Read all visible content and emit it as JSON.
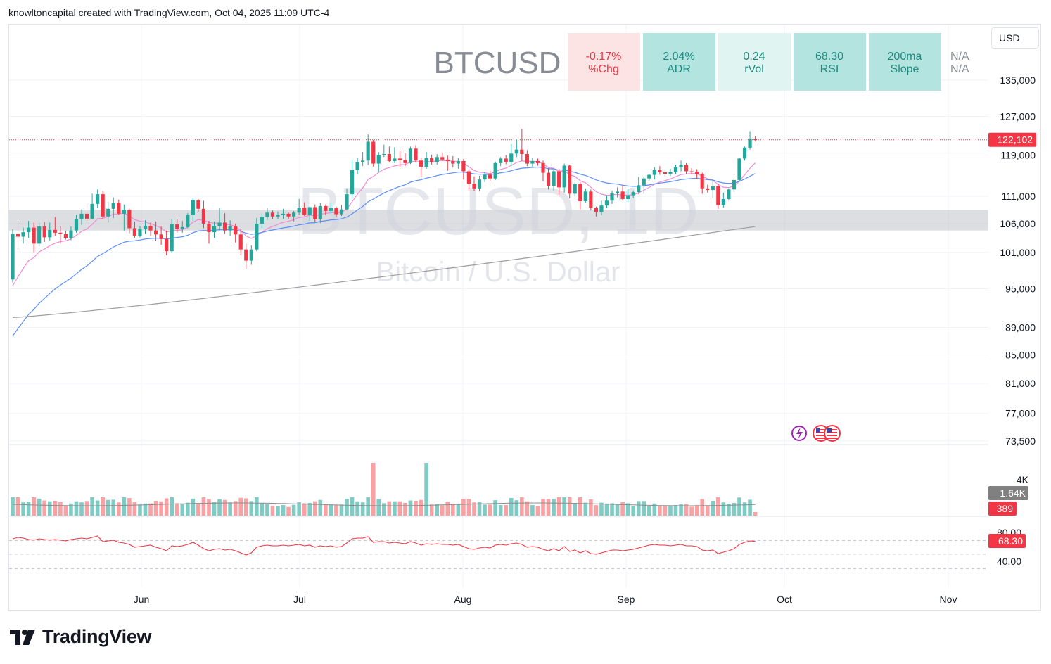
{
  "header": {
    "credit": "knowltoncapital created with TradingView.com, Oct 04, 2025 11:09 UTC-4"
  },
  "currency": "USD",
  "symbol": "BTCUSD",
  "watermark": {
    "title": "BTCUSD, 1D",
    "subtitle": "Bitcoin / U.S. Dollar"
  },
  "stats": [
    {
      "value": "-0.17%",
      "label": "%Chg",
      "tone": "neg"
    },
    {
      "value": "2.04%",
      "label": "ADR",
      "tone": "pos"
    },
    {
      "value": "0.24",
      "label": "rVol",
      "tone": "light"
    },
    {
      "value": "68.30",
      "label": "RSI",
      "tone": "pos"
    },
    {
      "value": "200ma",
      "label": "Slope",
      "tone": "pos"
    }
  ],
  "na_values": [
    "N/A",
    "N/A"
  ],
  "brand": {
    "name": "TradingView"
  },
  "colors": {
    "up": "#26a69a",
    "down": "#f23645",
    "ema_fast": "#f28bd8",
    "sma_mid": "#5b8ff9",
    "sma_slow": "#9e9e9e",
    "rsi": "#f23645"
  },
  "chart_data": {
    "type": "candlestick",
    "price_axis_ticks": [
      "135,000",
      "127,000",
      "119,000",
      "111,000",
      "106,000",
      "101,000",
      "95,000",
      "89,000",
      "85,000",
      "81,000",
      "77,000",
      "73,500"
    ],
    "x_tick_labels": [
      "Jun",
      "Jul",
      "Aug",
      "Sep",
      "Oct",
      "Nov"
    ],
    "last_price": "122,102",
    "ohlc": [
      [
        96500,
        105000,
        96000,
        104200
      ],
      [
        104200,
        106500,
        101500,
        103700
      ],
      [
        103700,
        105300,
        102500,
        104500
      ],
      [
        104500,
        106500,
        103500,
        105300
      ],
      [
        105300,
        106200,
        101000,
        102500
      ],
      [
        102500,
        106200,
        102000,
        105500
      ],
      [
        105500,
        106300,
        102800,
        103600
      ],
      [
        103600,
        106200,
        103000,
        104900
      ],
      [
        104900,
        107200,
        103800,
        104400
      ],
      [
        104400,
        105500,
        102500,
        104200
      ],
      [
        104200,
        104800,
        103200,
        103500
      ],
      [
        103500,
        105500,
        103100,
        104800
      ],
      [
        104800,
        107600,
        104400,
        106800
      ],
      [
        106800,
        108600,
        105800,
        107800
      ],
      [
        107800,
        109800,
        106500,
        106900
      ],
      [
        106900,
        111500,
        106800,
        109600
      ],
      [
        109600,
        112300,
        108800,
        111400
      ],
      [
        111400,
        112000,
        106800,
        107300
      ],
      [
        107300,
        109900,
        106200,
        108700
      ],
      [
        108700,
        110800,
        107000,
        109800
      ],
      [
        109800,
        110400,
        107600,
        107800
      ],
      [
        107800,
        109500,
        104800,
        108500
      ],
      [
        108500,
        108700,
        104300,
        105200
      ],
      [
        105200,
        106400,
        103500,
        103800
      ],
      [
        103800,
        105600,
        103600,
        105100
      ],
      [
        105100,
        106600,
        104200,
        105600
      ],
      [
        105600,
        106200,
        103800,
        104800
      ],
      [
        104800,
        106400,
        103000,
        104100
      ],
      [
        104100,
        105500,
        102300,
        103300
      ],
      [
        103300,
        104800,
        100500,
        101200
      ],
      [
        101200,
        106800,
        101000,
        105900
      ],
      [
        105900,
        106900,
        104400,
        105000
      ],
      [
        105000,
        106500,
        104400,
        105400
      ],
      [
        105400,
        107900,
        105200,
        107600
      ],
      [
        107600,
        110700,
        106500,
        110300
      ],
      [
        110300,
        110500,
        108200,
        108700
      ],
      [
        108700,
        110200,
        105200,
        106000
      ],
      [
        106000,
        106500,
        102500,
        104500
      ],
      [
        104500,
        106400,
        103500,
        105600
      ],
      [
        105600,
        108800,
        104800,
        106200
      ],
      [
        106200,
        107900,
        104200,
        104800
      ],
      [
        104800,
        106600,
        103800,
        105500
      ],
      [
        105500,
        106000,
        102700,
        104100
      ],
      [
        104100,
        105000,
        100500,
        101500
      ],
      [
        101500,
        102500,
        98200,
        99600
      ],
      [
        99600,
        102200,
        98900,
        101500
      ],
      [
        101500,
        107000,
        101200,
        106000
      ],
      [
        106000,
        107800,
        105200,
        107200
      ],
      [
        107200,
        108800,
        106700,
        108000
      ],
      [
        108000,
        108400,
        106800,
        107300
      ],
      [
        107300,
        108200,
        106800,
        107600
      ],
      [
        107600,
        108700,
        106900,
        107800
      ],
      [
        107800,
        108000,
        106900,
        107300
      ],
      [
        107300,
        108300,
        106400,
        108000
      ],
      [
        108000,
        110500,
        107600,
        108900
      ],
      [
        108900,
        109900,
        107400,
        107600
      ],
      [
        107600,
        109100,
        106500,
        109000
      ],
      [
        109000,
        109500,
        106300,
        106800
      ],
      [
        106800,
        109800,
        106100,
        109200
      ],
      [
        109200,
        109500,
        107600,
        108300
      ],
      [
        108300,
        109800,
        107800,
        108800
      ],
      [
        108800,
        109100,
        107200,
        107700
      ],
      [
        107700,
        109400,
        107400,
        108600
      ],
      [
        108600,
        112500,
        108400,
        111400
      ],
      [
        111400,
        118000,
        110600,
        116000
      ],
      [
        116000,
        118400,
        115200,
        117600
      ],
      [
        117600,
        119600,
        116800,
        117900
      ],
      [
        117900,
        123200,
        117000,
        121700
      ],
      [
        121700,
        122100,
        116700,
        117300
      ],
      [
        117300,
        119600,
        115600,
        119000
      ],
      [
        119000,
        121100,
        118600,
        119200
      ],
      [
        119200,
        120700,
        117500,
        117800
      ],
      [
        117800,
        120600,
        117400,
        118300
      ],
      [
        118300,
        119800,
        116600,
        118000
      ],
      [
        118000,
        119400,
        116800,
        117400
      ],
      [
        117400,
        120700,
        117200,
        120300
      ],
      [
        120300,
        121000,
        117600,
        117900
      ],
      [
        117900,
        118400,
        114700,
        116700
      ],
      [
        116700,
        119600,
        116300,
        118400
      ],
      [
        118400,
        119100,
        117100,
        117600
      ],
      [
        117600,
        119200,
        117100,
        118600
      ],
      [
        118600,
        119500,
        117800,
        118100
      ],
      [
        118100,
        118900,
        115900,
        117800
      ],
      [
        117800,
        118800,
        116500,
        117300
      ],
      [
        117300,
        118400,
        116300,
        117800
      ],
      [
        117800,
        118200,
        114200,
        115800
      ],
      [
        115800,
        116200,
        112100,
        113400
      ],
      [
        113400,
        114800,
        112000,
        112500
      ],
      [
        112500,
        114900,
        111900,
        114200
      ],
      [
        114200,
        115700,
        113700,
        115100
      ],
      [
        115100,
        115900,
        113900,
        114400
      ],
      [
        114400,
        117700,
        114100,
        117400
      ],
      [
        117400,
        118600,
        116800,
        118300
      ],
      [
        118300,
        119000,
        117200,
        117600
      ],
      [
        117600,
        121200,
        116800,
        119300
      ],
      [
        119300,
        122200,
        118600,
        120100
      ],
      [
        120100,
        124400,
        117800,
        119200
      ],
      [
        119200,
        120000,
        116800,
        117300
      ],
      [
        117300,
        118500,
        116700,
        117800
      ],
      [
        117800,
        118300,
        116900,
        117400
      ],
      [
        117400,
        117900,
        113800,
        115500
      ],
      [
        115500,
        116400,
        112300,
        113000
      ],
      [
        113000,
        116100,
        112000,
        115800
      ],
      [
        115800,
        116300,
        111300,
        112700
      ],
      [
        112700,
        117300,
        111700,
        116900
      ],
      [
        116900,
        117100,
        110600,
        111500
      ],
      [
        111500,
        113600,
        111000,
        113300
      ],
      [
        113300,
        113700,
        108600,
        110100
      ],
      [
        110100,
        112500,
        109800,
        111900
      ],
      [
        111900,
        112300,
        108400,
        108900
      ],
      [
        108900,
        109100,
        107300,
        108100
      ],
      [
        108100,
        110200,
        107500,
        109300
      ],
      [
        109300,
        111200,
        108800,
        110200
      ],
      [
        110200,
        112100,
        109600,
        111600
      ],
      [
        111600,
        112700,
        110800,
        111900
      ],
      [
        111900,
        113100,
        110200,
        110500
      ],
      [
        110500,
        112400,
        109900,
        111200
      ],
      [
        111200,
        112100,
        110700,
        111800
      ],
      [
        111800,
        114700,
        111400,
        113100
      ],
      [
        113100,
        114800,
        111500,
        114400
      ],
      [
        114400,
        115300,
        114000,
        115100
      ],
      [
        115100,
        116600,
        114200,
        116000
      ],
      [
        116000,
        116800,
        115100,
        115600
      ],
      [
        115600,
        116200,
        114800,
        115300
      ],
      [
        115300,
        116300,
        114900,
        115700
      ],
      [
        115700,
        117100,
        115300,
        116600
      ],
      [
        116600,
        117900,
        115800,
        117100
      ],
      [
        117100,
        117400,
        115200,
        115800
      ],
      [
        115800,
        116400,
        115200,
        115700
      ],
      [
        115700,
        116200,
        114400,
        115300
      ],
      [
        115300,
        115500,
        111500,
        112500
      ],
      [
        112500,
        113200,
        111700,
        112200
      ],
      [
        112200,
        114100,
        110700,
        112900
      ],
      [
        112900,
        113400,
        108700,
        109400
      ],
      [
        109400,
        111700,
        108900,
        110500
      ],
      [
        110500,
        112500,
        110200,
        112300
      ],
      [
        112300,
        114500,
        111900,
        114100
      ],
      [
        114100,
        118400,
        113800,
        118300
      ],
      [
        118300,
        120700,
        117900,
        120500
      ],
      [
        120500,
        123900,
        120100,
        122300
      ],
      [
        122300,
        122800,
        121800,
        122102
      ]
    ],
    "volume_labels": [
      "4K",
      "1.64K",
      "389"
    ],
    "rsi": {
      "ticks": [
        "80.00",
        "40.00"
      ],
      "last": "68.30",
      "values": [
        72,
        74,
        73,
        71,
        70,
        72,
        71,
        70,
        71,
        70,
        69,
        71,
        72,
        73,
        72,
        74,
        76,
        68,
        69,
        70,
        67,
        66,
        64,
        60,
        61,
        62,
        63,
        60,
        58,
        55,
        62,
        61,
        62,
        64,
        67,
        63,
        58,
        55,
        57,
        58,
        56,
        57,
        55,
        52,
        49,
        52,
        60,
        62,
        63,
        62,
        62,
        63,
        62,
        63,
        64,
        62,
        63,
        60,
        62,
        61,
        62,
        60,
        61,
        66,
        72,
        73,
        73,
        75,
        67,
        68,
        68,
        66,
        67,
        66,
        65,
        68,
        66,
        63,
        65,
        64,
        65,
        64,
        64,
        63,
        64,
        61,
        58,
        57,
        59,
        60,
        59,
        63,
        64,
        63,
        65,
        66,
        64,
        60,
        61,
        60,
        57,
        55,
        58,
        55,
        61,
        54,
        56,
        52,
        55,
        51,
        50,
        52,
        54,
        56,
        56,
        55,
        56,
        57,
        59,
        61,
        63,
        64,
        63,
        63,
        62,
        63,
        64,
        62,
        62,
        61,
        56,
        55,
        56,
        51,
        53,
        55,
        58,
        64,
        67,
        69,
        68.3
      ]
    },
    "ma_endpoints": {
      "ema_fast_last": 115200,
      "sma_mid_last": 113300,
      "sma_slow_last": 105500
    }
  }
}
